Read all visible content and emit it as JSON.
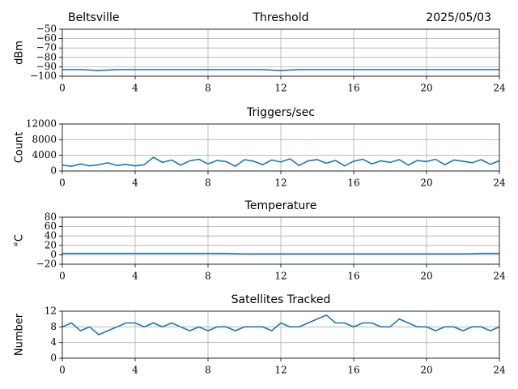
{
  "chart_data": [
    {
      "type": "line",
      "title": "Threshold",
      "location": "Beltsville",
      "date": "2025/05/03",
      "ylabel": "dBm",
      "x": [
        0,
        1,
        2,
        3,
        4,
        5,
        6,
        7,
        8,
        9,
        10,
        11,
        12,
        13,
        14,
        15,
        16,
        17,
        18,
        19,
        20,
        21,
        22,
        23,
        24
      ],
      "values": [
        -93,
        -93,
        -94,
        -93,
        -93,
        -93,
        -93,
        -93,
        -93,
        -93,
        -93,
        -93,
        -94,
        -93,
        -93,
        -93,
        -93,
        -93,
        -93,
        -93,
        -93,
        -93,
        -93,
        -93,
        -93
      ],
      "color": "#1f77b4",
      "xlim": [
        0,
        24
      ],
      "xticks": [
        0,
        4,
        8,
        12,
        16,
        20,
        24
      ],
      "ylim": [
        -100,
        -50
      ],
      "yticks": [
        {
          "value": -100,
          "label": "−100"
        },
        {
          "value": -90,
          "label": "−90"
        },
        {
          "value": -80,
          "label": "−80"
        },
        {
          "value": -70,
          "label": "−70"
        },
        {
          "value": -60,
          "label": "−60"
        },
        {
          "value": -50,
          "label": "−50"
        }
      ],
      "grid": true
    },
    {
      "type": "line",
      "title": "Triggers/sec",
      "ylabel": "Count",
      "x": [
        0,
        0.5,
        1,
        1.5,
        2,
        2.5,
        3,
        3.5,
        4,
        4.5,
        5,
        5.5,
        6,
        6.5,
        7,
        7.5,
        8,
        8.5,
        9,
        9.5,
        10,
        10.5,
        11,
        11.5,
        12,
        12.5,
        13,
        13.5,
        14,
        14.5,
        15,
        15.5,
        16,
        16.5,
        17,
        17.5,
        18,
        18.5,
        19,
        19.5,
        20,
        20.5,
        21,
        21.5,
        22,
        22.5,
        23,
        23.5,
        24
      ],
      "values": [
        1500,
        1200,
        1800,
        1300,
        1600,
        2100,
        1400,
        1700,
        1300,
        1600,
        3500,
        2200,
        2800,
        1500,
        2600,
        3000,
        1800,
        2700,
        2400,
        1200,
        2900,
        2500,
        1600,
        2800,
        2300,
        3100,
        1400,
        2600,
        2900,
        2000,
        2700,
        1300,
        2500,
        3000,
        1800,
        2600,
        2200,
        2900,
        1500,
        2700,
        2400,
        3000,
        1600,
        2800,
        2500,
        2100,
        2900,
        1700,
        2600
      ],
      "color": "#1f77b4",
      "xlim": [
        0,
        24
      ],
      "xticks": [
        0,
        4,
        8,
        12,
        16,
        20,
        24
      ],
      "ylim": [
        0,
        12000
      ],
      "yticks": [
        0,
        4000,
        8000,
        12000
      ],
      "grid": true
    },
    {
      "type": "line",
      "title": "Temperature",
      "ylabel": "°C",
      "x": [
        0,
        1,
        2,
        3,
        4,
        5,
        6,
        7,
        8,
        9,
        10,
        11,
        12,
        13,
        14,
        15,
        16,
        17,
        18,
        19,
        20,
        21,
        22,
        23,
        24
      ],
      "values": [
        3,
        3,
        3,
        3,
        3,
        3,
        3,
        3,
        3,
        3,
        2,
        2,
        2,
        2,
        2,
        2,
        2,
        2,
        2,
        2,
        2,
        2,
        2,
        3,
        3
      ],
      "color": "#1f77b4",
      "xlim": [
        0,
        24
      ],
      "xticks": [
        0,
        4,
        8,
        12,
        16,
        20,
        24
      ],
      "ylim": [
        -20,
        80
      ],
      "yticks": [
        {
          "value": -20,
          "label": "−20"
        },
        0,
        20,
        40,
        60,
        80
      ],
      "grid": true
    },
    {
      "type": "line",
      "title": "Satellites Tracked",
      "ylabel": "Number",
      "x": [
        0,
        0.5,
        1,
        1.5,
        2,
        2.5,
        3,
        3.5,
        4,
        4.5,
        5,
        5.5,
        6,
        6.5,
        7,
        7.5,
        8,
        8.5,
        9,
        9.5,
        10,
        10.5,
        11,
        11.5,
        12,
        12.5,
        13,
        13.5,
        14,
        14.5,
        15,
        15.5,
        16,
        16.5,
        17,
        17.5,
        18,
        18.5,
        19,
        19.5,
        20,
        20.5,
        21,
        21.5,
        22,
        22.5,
        23,
        23.5,
        24
      ],
      "values": [
        8,
        9,
        7,
        8,
        6,
        7,
        8,
        9,
        9,
        8,
        9,
        8,
        9,
        8,
        7,
        8,
        7,
        8,
        8,
        7,
        8,
        8,
        8,
        7,
        9,
        8,
        8,
        9,
        10,
        11,
        9,
        9,
        8,
        9,
        9,
        8,
        8,
        10,
        9,
        8,
        8,
        7,
        8,
        8,
        7,
        8,
        8,
        7,
        8
      ],
      "color": "#1f77b4",
      "xlim": [
        0,
        24
      ],
      "xticks": [
        0,
        4,
        8,
        12,
        16,
        20,
        24
      ],
      "ylim": [
        0,
        12
      ],
      "yticks": [
        0,
        4,
        8,
        12
      ],
      "grid": true
    }
  ]
}
